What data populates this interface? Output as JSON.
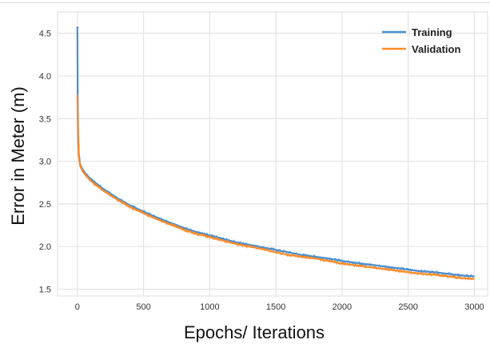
{
  "chart_data": {
    "type": "line",
    "title": "",
    "xlabel": "Epochs/ Iterations",
    "ylabel": "Error in Meter (m)",
    "xlim": [
      -150,
      3100
    ],
    "ylim": [
      1.42,
      4.75
    ],
    "xticks": [
      0,
      500,
      1000,
      1500,
      2000,
      2500,
      3000
    ],
    "yticks": [
      1.5,
      2.0,
      2.5,
      3.0,
      3.5,
      4.0,
      4.5
    ],
    "xtick_labels": [
      "0",
      "500",
      "1000",
      "1500",
      "2000",
      "2500",
      "3000"
    ],
    "ytick_labels": [
      "1.5",
      "2.0",
      "2.5",
      "3.0",
      "3.5",
      "4.0",
      "4.5"
    ],
    "grid": true,
    "legend_position": "top-right",
    "series": [
      {
        "name": "Training",
        "color": "#4a8fcf",
        "x": [
          0,
          2,
          5,
          10,
          20,
          40,
          60,
          100,
          150,
          200,
          300,
          400,
          500,
          600,
          700,
          800,
          900,
          1000,
          1100,
          1200,
          1300,
          1400,
          1500,
          1600,
          1700,
          1800,
          1900,
          2000,
          2100,
          2200,
          2300,
          2400,
          2500,
          2600,
          2700,
          2800,
          2900,
          3000
        ],
        "y": [
          4.58,
          3.8,
          3.35,
          3.1,
          2.97,
          2.9,
          2.86,
          2.79,
          2.73,
          2.67,
          2.57,
          2.48,
          2.41,
          2.34,
          2.28,
          2.22,
          2.17,
          2.13,
          2.09,
          2.05,
          2.02,
          1.99,
          1.96,
          1.93,
          1.9,
          1.88,
          1.86,
          1.83,
          1.81,
          1.79,
          1.77,
          1.75,
          1.73,
          1.71,
          1.7,
          1.68,
          1.66,
          1.65
        ]
      },
      {
        "name": "Validation",
        "color": "#ff8c2a",
        "x": [
          0,
          2,
          5,
          10,
          20,
          40,
          60,
          100,
          150,
          200,
          300,
          400,
          500,
          600,
          700,
          800,
          900,
          1000,
          1100,
          1200,
          1300,
          1400,
          1500,
          1600,
          1700,
          1800,
          1900,
          2000,
          2100,
          2200,
          2300,
          2400,
          2500,
          2600,
          2700,
          2800,
          2900,
          3000
        ],
        "y": [
          3.78,
          3.45,
          3.2,
          3.06,
          2.95,
          2.88,
          2.84,
          2.77,
          2.71,
          2.65,
          2.55,
          2.46,
          2.39,
          2.32,
          2.26,
          2.2,
          2.15,
          2.11,
          2.07,
          2.03,
          2.0,
          1.97,
          1.93,
          1.9,
          1.88,
          1.86,
          1.83,
          1.8,
          1.78,
          1.76,
          1.74,
          1.72,
          1.7,
          1.68,
          1.67,
          1.65,
          1.63,
          1.62
        ]
      }
    ]
  }
}
